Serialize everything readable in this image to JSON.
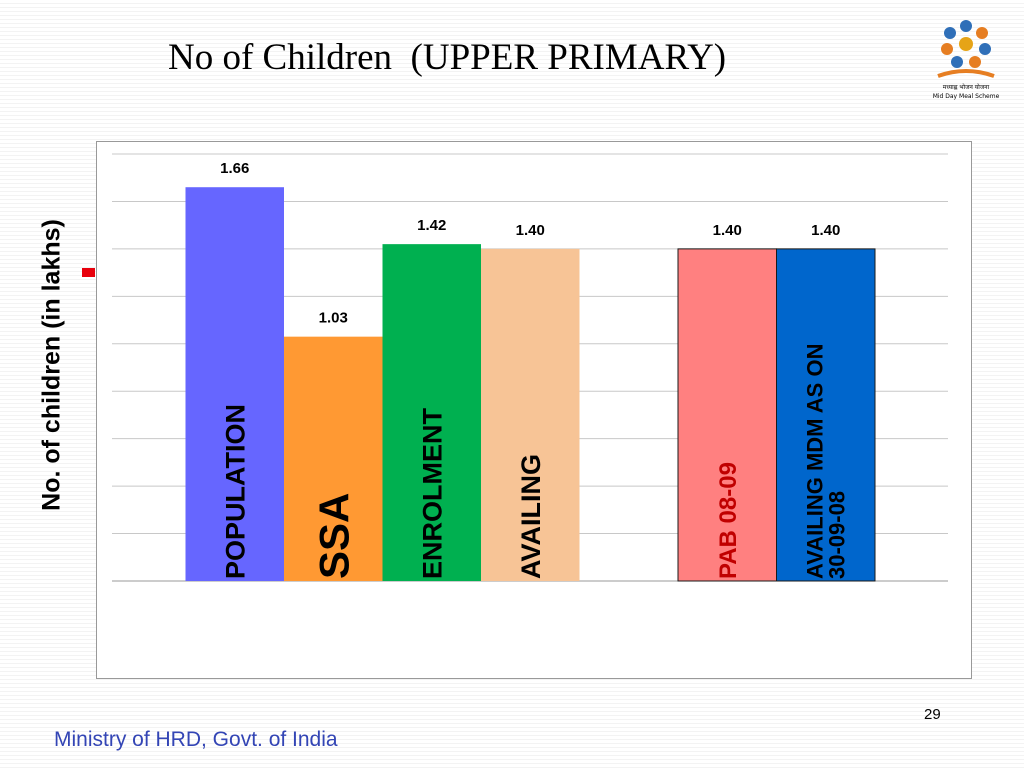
{
  "slide": {
    "title": "No of Children  (UPPER PRIMARY)",
    "footer": "Ministry of HRD, Govt. of India",
    "page_number": "29",
    "logo_text_hindi": "मध्याह्न भोजन योजना",
    "logo_text_english": "Mid Day Meal Scheme"
  },
  "chart_data": {
    "type": "bar",
    "title": "No of Children  (UPPER PRIMARY)",
    "ylabel": "No. of children (in lakhs)",
    "ylim": [
      0,
      1.8
    ],
    "grid": true,
    "bars": [
      {
        "label": "POPULATION",
        "value": 1.66,
        "value_label": "1.66",
        "color": "#6666ff",
        "label_color": "#000000"
      },
      {
        "label": "SSA",
        "value": 1.03,
        "value_label": "1.03",
        "color": "#ff9933",
        "label_color": "#000000"
      },
      {
        "label": "ENROLMENT",
        "value": 1.42,
        "value_label": "1.42",
        "color": "#00b050",
        "label_color": "#000000"
      },
      {
        "label": "AVAILING",
        "value": 1.4,
        "value_label": "1.40",
        "color": "#f7c496",
        "label_color": "#000000"
      },
      {
        "label": "",
        "value": 0,
        "value_label": "",
        "color": "#ffffff",
        "label_color": "#000000"
      },
      {
        "label": "PAB 08-09",
        "value": 1.4,
        "value_label": "1.40",
        "color": "#ff8080",
        "label_color": "#c00000"
      },
      {
        "label": "AVAILING MDM AS ON 30-09-08",
        "label_lines": [
          "AVAILING MDM AS ON",
          "30-09-08"
        ],
        "value": 1.4,
        "value_label": "1.40",
        "color": "#0066cc",
        "label_color": "#000000"
      }
    ],
    "legend_color": "#e8000c"
  }
}
